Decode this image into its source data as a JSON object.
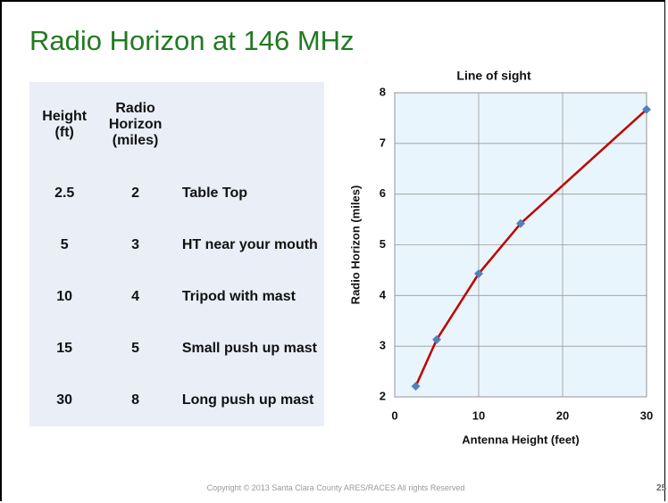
{
  "title": "Radio Horizon at 146 MHz",
  "table": {
    "header": [
      "Height (ft)",
      "Radio Horizon (miles)",
      ""
    ],
    "rows": [
      [
        "2.5",
        "2",
        "Table Top"
      ],
      [
        "5",
        "3",
        "HT near your mouth"
      ],
      [
        "10",
        "4",
        "Tripod with mast"
      ],
      [
        "15",
        "5",
        "Small push up mast"
      ],
      [
        "30",
        "8",
        "Long push up mast"
      ]
    ]
  },
  "chart_data": {
    "type": "line",
    "title": "Line of sight",
    "x_label": "Antenna Height (feet)",
    "y_label": "Radio Horizon (miles)",
    "x": [
      2.5,
      5,
      10,
      15,
      30
    ],
    "series": [
      {
        "name": "Radio Horizon",
        "color": "#c00000",
        "marker_color": "#4f81bd",
        "values": [
          2.21,
          3.13,
          4.43,
          5.42,
          7.67
        ]
      }
    ],
    "xlim": [
      0,
      30
    ],
    "xticks": [
      0,
      10,
      20,
      30
    ],
    "ylim": [
      2,
      8
    ],
    "yticks": [
      2,
      3,
      4,
      5,
      6,
      7,
      8
    ],
    "grid": true
  },
  "footer": "Copyright © 2013 Santa Clara County ARES/RACES All rights Reserved",
  "page_number": "25"
}
